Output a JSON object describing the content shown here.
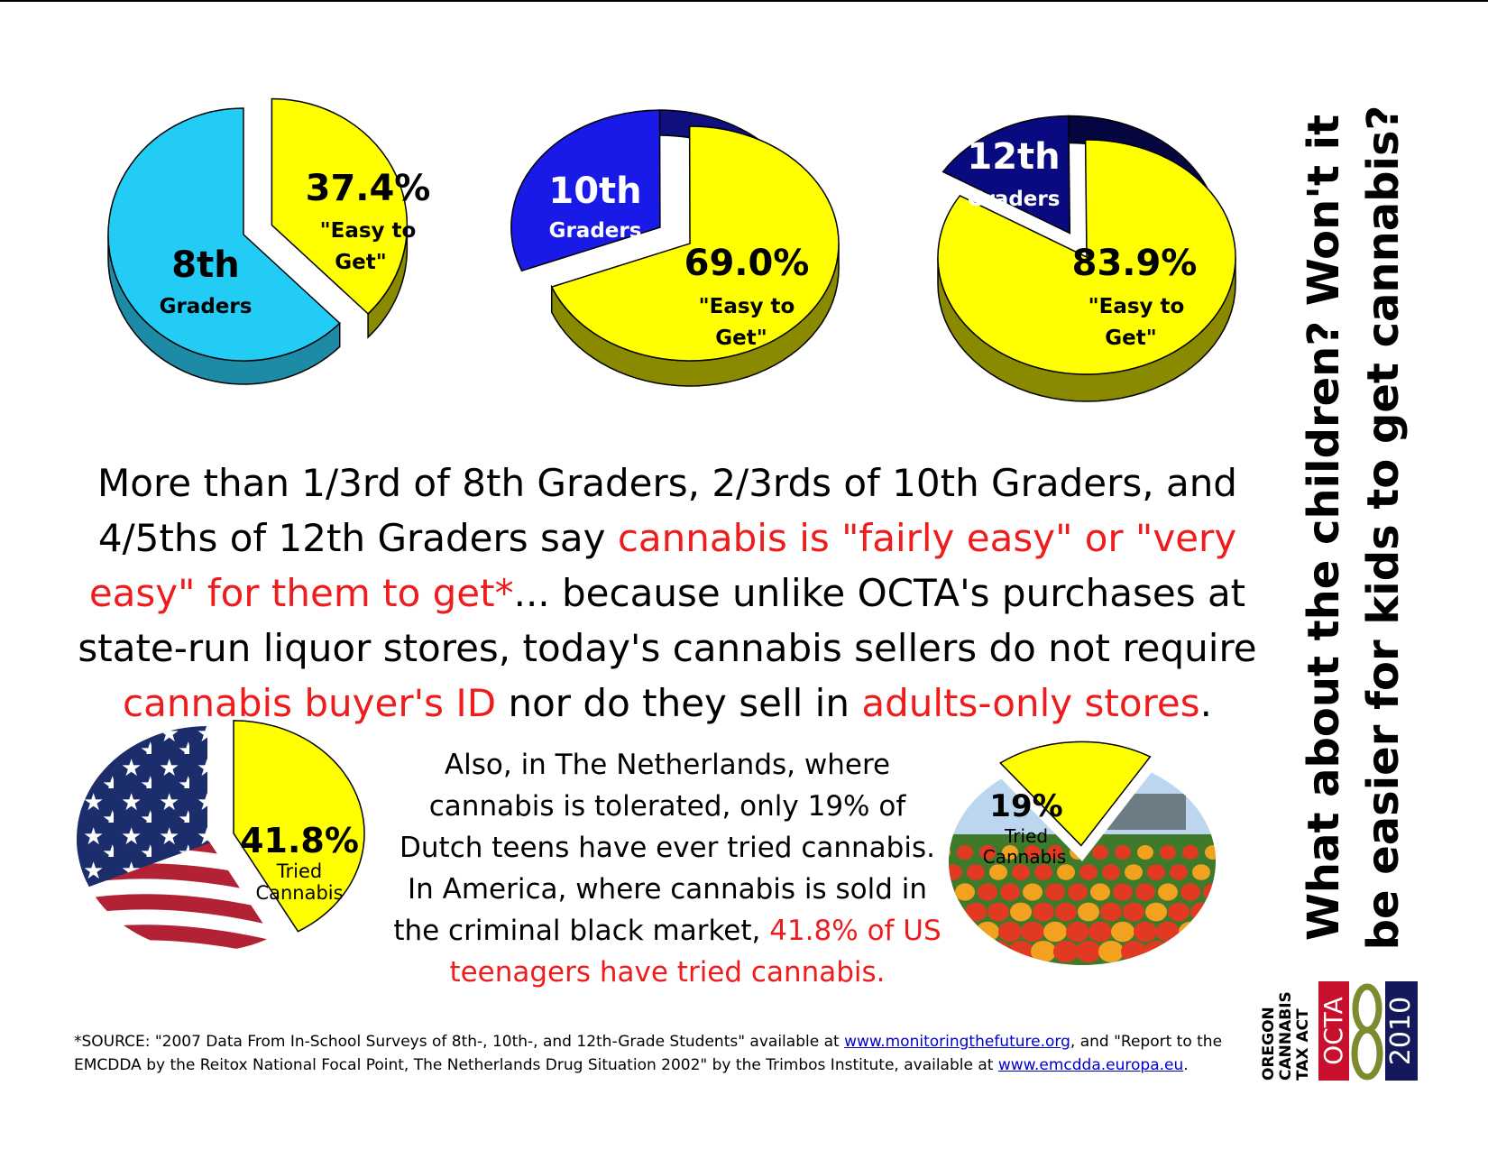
{
  "chart_data": [
    {
      "type": "pie",
      "title": "",
      "slices": [
        {
          "label": "8th Graders",
          "value": 62.6
        },
        {
          "label": "37.4% \"Easy to Get\"",
          "value": 37.4,
          "exploded": true
        }
      ],
      "colors": [
        "#22ccf5",
        "#ffff00"
      ]
    },
    {
      "type": "pie",
      "title": "",
      "slices": [
        {
          "label": "69.0% \"Easy to Get\"",
          "value": 69.0
        },
        {
          "label": "10th Graders",
          "value": 31.0,
          "exploded": true
        }
      ],
      "colors": [
        "#ffff00",
        "#1a1ae8"
      ]
    },
    {
      "type": "pie",
      "title": "",
      "slices": [
        {
          "label": "83.9% \"Easy to Get\"",
          "value": 83.9
        },
        {
          "label": "12th Graders",
          "value": 16.1,
          "exploded": true
        }
      ],
      "colors": [
        "#ffff00",
        "#0a0a80"
      ]
    },
    {
      "type": "pie",
      "title": "",
      "slices": [
        {
          "label": "US flag",
          "value": 58.2
        },
        {
          "label": "41.8% Tried Cannabis",
          "value": 41.8,
          "exploded": true
        }
      ],
      "colors": [
        "#b22234",
        "#ffff00"
      ]
    },
    {
      "type": "pie",
      "title": "",
      "slices": [
        {
          "label": "tulip field",
          "value": 81
        },
        {
          "label": "19% Tried Cannabis",
          "value": 19,
          "exploded": true
        }
      ],
      "colors": [
        "#e8442a",
        "#ffff00"
      ]
    }
  ],
  "pies": {
    "p8": {
      "pct": "37.4%",
      "easy_line1": "\"Easy to",
      "easy_line2": "Get\"",
      "grade": "8th",
      "graders": "Graders"
    },
    "p10": {
      "pct": "69.0%",
      "easy_line1": "\"Easy to",
      "easy_line2": "Get\"",
      "grade": "10th",
      "graders": "Graders"
    },
    "p12": {
      "pct": "83.9%",
      "easy_line1": "\"Easy to",
      "easy_line2": "Get\"",
      "grade": "12th",
      "graders": "Graders"
    },
    "us": {
      "pct": "41.8%",
      "line1": "Tried",
      "line2": "Cannabis"
    },
    "nl": {
      "pct": "19%",
      "line1": "Tried",
      "line2": "Cannabis"
    }
  },
  "main_text": {
    "part1": "More than 1/3rd of 8th Graders, 2/3rds of 10th Graders, and 4/5ths of 12th Graders say ",
    "red1": "cannabis is \"fairly easy\" or \"very easy\" for them to get*",
    "part2": "... because unlike OCTA's purchases at state-run liquor stores, today's cannabis sellers do not require ",
    "red2": "cannabis buyer's ID",
    "part3": " nor do they sell in ",
    "red3": "adults-only stores",
    "part4": "."
  },
  "nl_text": {
    "part1": "Also, in The Netherlands, where cannabis is tolerated, only 19% of Dutch teens have ever tried cannabis. In America, where cannabis is sold in the criminal black market, ",
    "red": "41.8% of US teenagers have tried cannabis."
  },
  "source": {
    "part1": "*SOURCE: \"2007 Data From In-School Surveys of 8th-, 10th-, and 12th-Grade Students\" available at ",
    "link1": "www.monitoringthefuture.org",
    "part2": ", and \"Report to the EMCDDA by the Reitox National Focal Point, The Netherlands Drug Situation 2002\" by the Trimbos Institute, available at ",
    "link2": "www.emcdda.europa.eu",
    "part3": "."
  },
  "side_title": {
    "line1": "What about the children?  Won't it",
    "line2": "be easier for kids to get cannabis?"
  },
  "logo": {
    "l1": "OREGON",
    "l2": "CANNABIS",
    "l3": "TAX ACT",
    "octa": "OCTA",
    "year": "2010"
  },
  "colors": {
    "yellow": "#ffff00",
    "cyan": "#22ccf5",
    "blue": "#1a1ae8",
    "navy": "#0a0a80",
    "red": "#ee1c1c",
    "link": "#0000cc"
  }
}
